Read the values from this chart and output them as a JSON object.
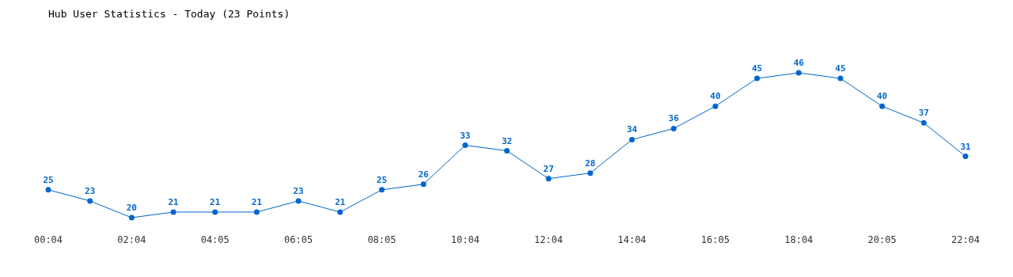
{
  "chart_data": {
    "type": "line",
    "title": "Hub User Statistics - Today (23 Points)",
    "categories": [
      "00:04",
      null,
      "02:04",
      null,
      "04:05",
      null,
      "06:05",
      null,
      "08:05",
      null,
      "10:04",
      null,
      "12:04",
      null,
      "14:04",
      null,
      "16:05",
      null,
      "18:04",
      null,
      "20:05",
      null,
      "22:04"
    ],
    "series": [
      {
        "color": "#0066cc",
        "values": [
          25,
          23,
          20,
          21,
          21,
          21,
          23,
          21,
          25,
          26,
          33,
          32,
          27,
          28,
          34,
          36,
          40,
          45,
          46,
          45,
          40,
          37,
          31
        ]
      }
    ],
    "data_labels": true,
    "marker": "circle"
  }
}
